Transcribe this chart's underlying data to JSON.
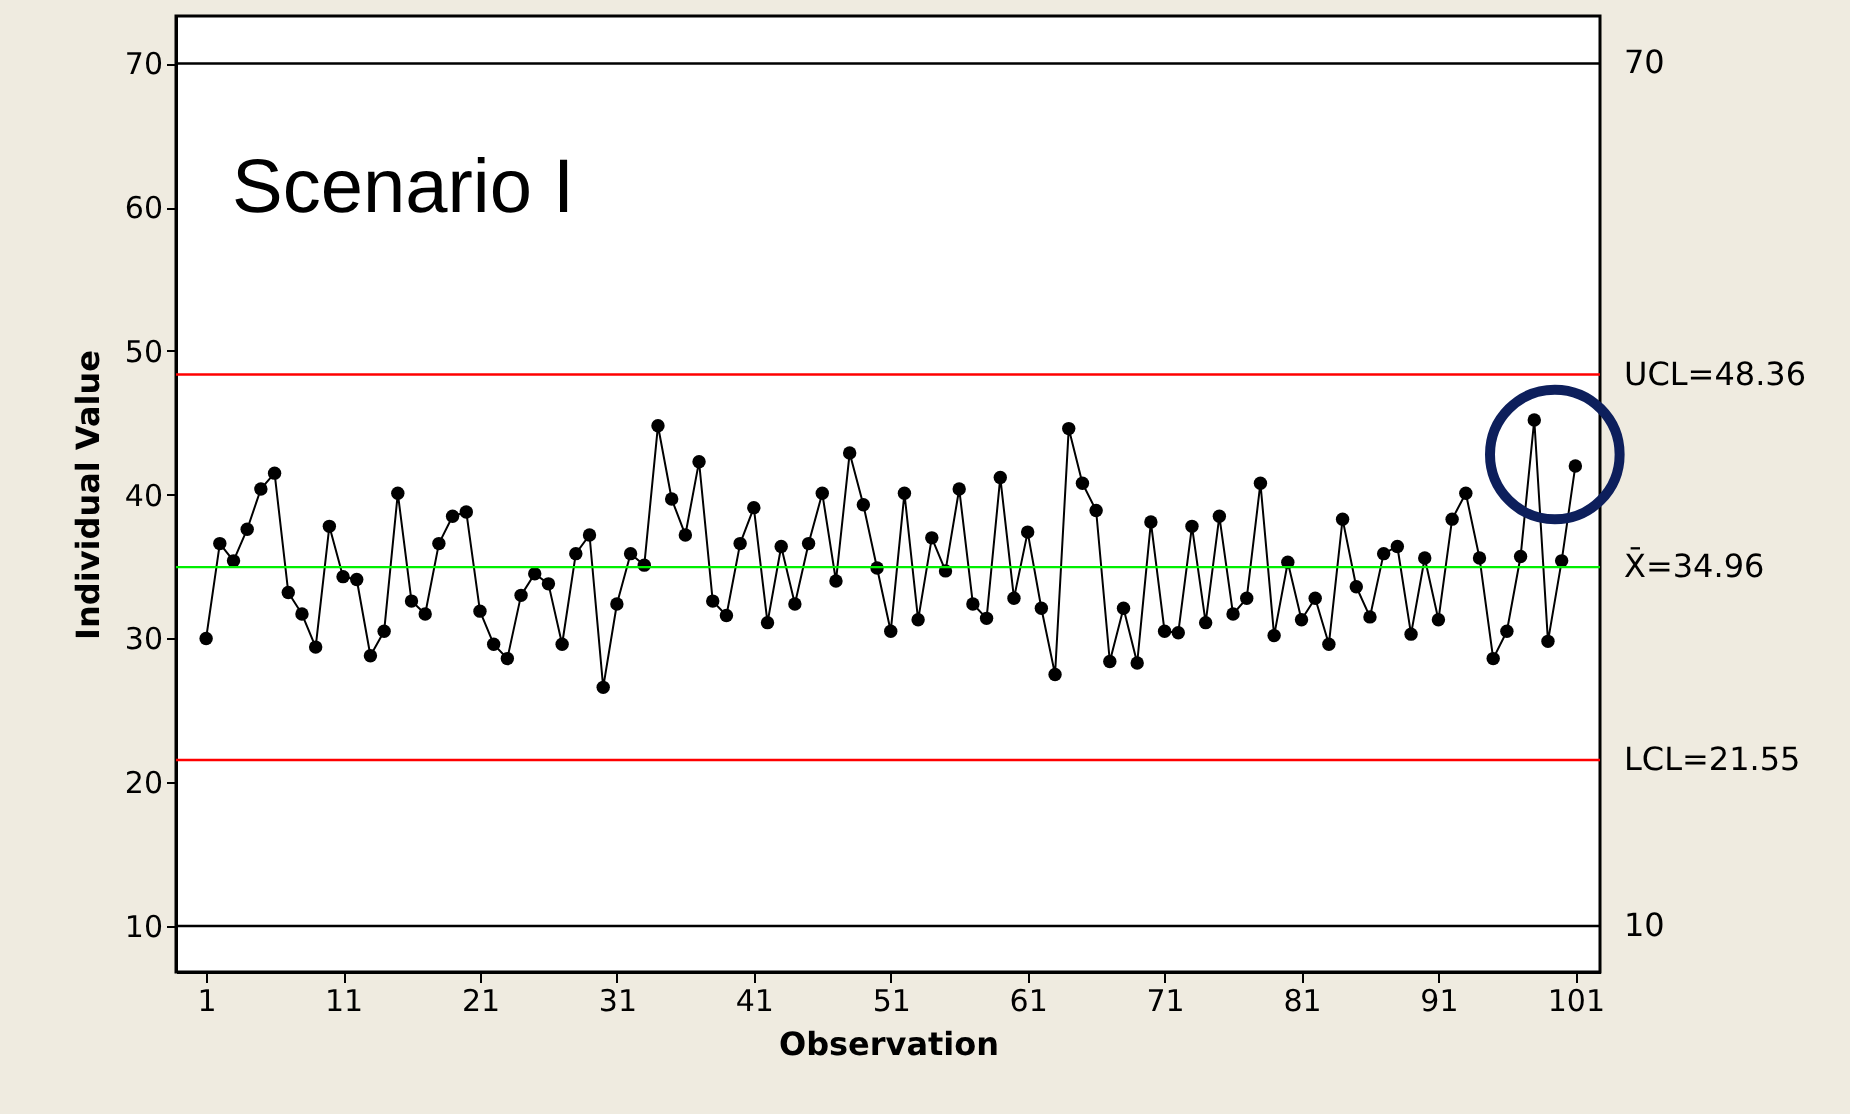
{
  "chart_data": {
    "type": "line",
    "title": "Scenario I",
    "xlabel": "Observation",
    "ylabel": "Individual Value",
    "x": [
      1,
      2,
      3,
      4,
      5,
      6,
      7,
      8,
      9,
      10,
      11,
      12,
      13,
      14,
      15,
      16,
      17,
      18,
      19,
      20,
      21,
      22,
      23,
      24,
      25,
      26,
      27,
      28,
      29,
      30,
      31,
      32,
      33,
      34,
      35,
      36,
      37,
      38,
      39,
      40,
      41,
      42,
      43,
      44,
      45,
      46,
      47,
      48,
      49,
      50,
      51,
      52,
      53,
      54,
      55,
      56,
      57,
      58,
      59,
      60,
      61,
      62,
      63,
      64,
      65,
      66,
      67,
      68,
      69,
      70,
      71,
      72,
      73,
      74,
      75,
      76,
      77,
      78,
      79,
      80,
      81,
      82,
      83,
      84,
      85,
      86,
      87,
      88,
      89,
      90,
      91,
      92,
      93,
      94,
      95,
      96,
      97,
      98,
      99,
      100,
      101
    ],
    "series": [
      {
        "color": "#000000",
        "values": [
          30,
          36.6,
          35.4,
          37.6,
          40.4,
          41.5,
          33.2,
          31.7,
          29.4,
          37.8,
          34.3,
          34.1,
          28.8,
          30.5,
          40.1,
          32.6,
          31.7,
          36.6,
          38.5,
          38.8,
          31.9,
          29.6,
          28.6,
          33,
          34.5,
          33.8,
          29.6,
          35.9,
          37.2,
          26.6,
          32.4,
          35.9,
          35.1,
          44.8,
          39.7,
          37.2,
          42.3,
          32.6,
          31.6,
          36.6,
          39.1,
          31.1,
          36.4,
          32.4,
          36.6,
          40.1,
          34,
          42.9,
          39.3,
          34.9,
          30.5,
          40.1,
          31.3,
          37,
          34.7,
          40.4,
          32.4,
          31.4,
          41.2,
          32.8,
          37.4,
          32.1,
          27.5,
          44.6,
          40.8,
          38.9,
          28.4,
          32.1,
          28.3,
          38.1,
          30.5,
          30.4,
          37.8,
          31.1,
          38.5,
          31.7,
          32.8,
          40.8,
          30.2,
          35.3,
          31.3,
          32.8,
          29.6,
          38.3,
          33.6,
          31.5,
          35.9,
          36.4,
          30.3,
          35.6,
          31.3,
          38.3,
          40.1,
          35.6,
          28.6,
          30.5,
          35.7,
          45.2,
          29.8,
          35.4,
          42
        ]
      }
    ],
    "marker": "circle",
    "line_style": "solid",
    "grid": false,
    "xlim": [
      -1.2,
      102.8
    ],
    "xticks": [
      1,
      11,
      21,
      31,
      41,
      51,
      61,
      71,
      81,
      91,
      101
    ],
    "ylim": [
      6.8,
      73.3
    ],
    "yticks": [
      10,
      20,
      30,
      40,
      50,
      60,
      70
    ],
    "ref_lines": [
      {
        "axis": "y",
        "value": 70,
        "label": "70",
        "color": "#000000"
      },
      {
        "axis": "y",
        "value": 48.36,
        "label": "UCL=48.36",
        "color": "#ff0000"
      },
      {
        "axis": "y",
        "value": 34.96,
        "label": "X̄=34.96",
        "color": "#00ee00"
      },
      {
        "axis": "y",
        "value": 21.55,
        "label": "LCL=21.55",
        "color": "#ff0000"
      },
      {
        "axis": "y",
        "value": 10,
        "label": "10",
        "color": "#000000"
      }
    ]
  }
}
